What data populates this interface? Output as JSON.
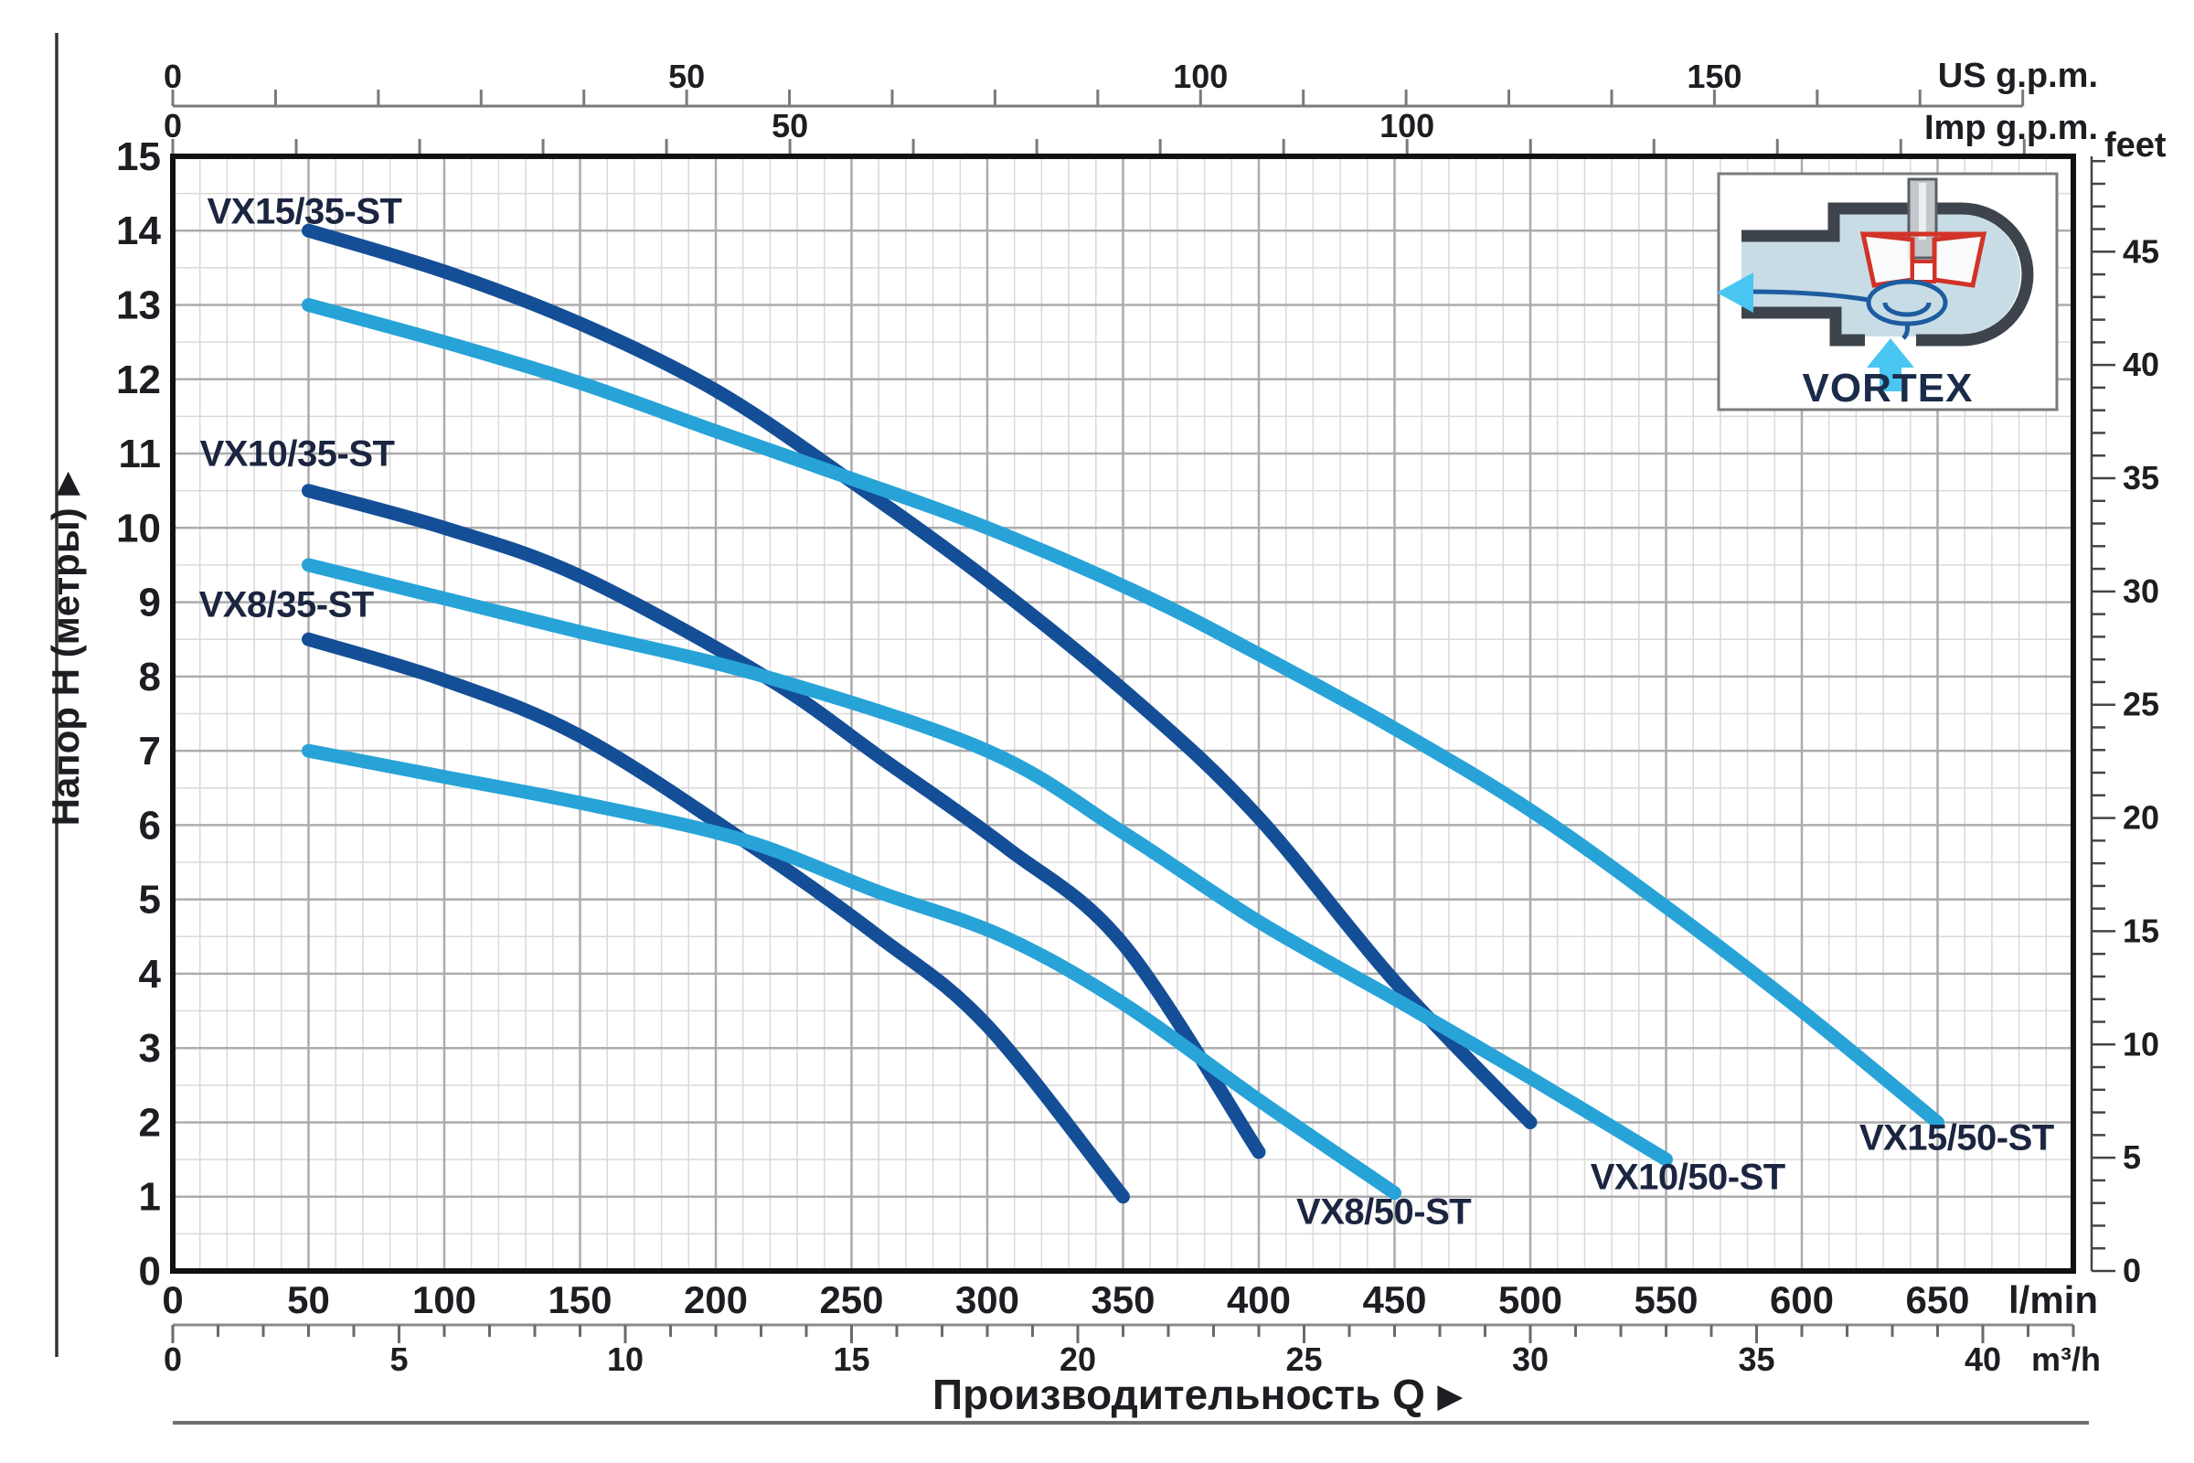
{
  "chart_data": {
    "type": "line",
    "x_axis_title": "Производительность Q",
    "y_axis_title": "Напор H (метры)",
    "x_axes": {
      "lmin": {
        "unit": "l/min",
        "labeled_ticks": [
          0,
          50,
          100,
          150,
          200,
          250,
          300,
          350,
          400,
          450,
          500,
          550,
          600,
          650
        ],
        "minor_step": 10,
        "range": [
          0,
          700
        ]
      },
      "m3h": {
        "unit": "m³/h",
        "labeled_ticks": [
          0,
          5,
          10,
          15,
          20,
          25,
          30,
          35,
          40
        ],
        "minor_step": 1,
        "range": [
          0,
          42
        ]
      },
      "us_gpm": {
        "unit": "US g.p.m.",
        "labeled_ticks": [
          0,
          50,
          100,
          150
        ],
        "minor_step": 10,
        "range": [
          0,
          180
        ]
      },
      "imp_gpm": {
        "unit": "Imp g.p.m.",
        "labeled_ticks": [
          0,
          50,
          100
        ],
        "minor_step": 10,
        "range": [
          0,
          150
        ]
      }
    },
    "y_axes": {
      "meters": {
        "unit": "m",
        "labeled_ticks": [
          0,
          1,
          2,
          3,
          4,
          5,
          6,
          7,
          8,
          9,
          10,
          11,
          12,
          13,
          14,
          15
        ],
        "minor_step": 0.5,
        "range": [
          0,
          15
        ]
      },
      "feet": {
        "unit": "feet",
        "labeled_ticks": [
          0,
          5,
          10,
          15,
          20,
          25,
          30,
          35,
          40,
          45
        ],
        "minor_step": 1,
        "range": [
          0,
          49
        ]
      }
    },
    "grid": "on",
    "series": [
      {
        "name": "VX15/35-ST",
        "color": "dark",
        "points": [
          [
            50,
            14.0
          ],
          [
            100,
            13.45
          ],
          [
            150,
            12.75
          ],
          [
            200,
            11.85
          ],
          [
            247,
            10.7
          ],
          [
            300,
            9.3
          ],
          [
            357,
            7.6
          ],
          [
            400,
            6.1
          ],
          [
            450,
            3.9
          ],
          [
            500,
            2.0
          ]
        ],
        "label_at": [
          48.5,
          14.25
        ]
      },
      {
        "name": "VX15/50-ST",
        "color": "light",
        "points": [
          [
            50,
            13.0
          ],
          [
            100,
            12.5
          ],
          [
            150,
            11.95
          ],
          [
            200,
            11.3
          ],
          [
            247,
            10.7
          ],
          [
            300,
            10.0
          ],
          [
            357,
            9.1
          ],
          [
            400,
            8.3
          ],
          [
            450,
            7.3
          ],
          [
            500,
            6.2
          ],
          [
            550,
            4.9
          ],
          [
            600,
            3.5
          ],
          [
            650,
            2.0
          ]
        ],
        "label_at": [
          657,
          1.78
        ]
      },
      {
        "name": "VX10/35-ST",
        "color": "dark",
        "points": [
          [
            50,
            10.5
          ],
          [
            100,
            10.0
          ],
          [
            150,
            9.35
          ],
          [
            218,
            8.0
          ],
          [
            261,
            6.9
          ],
          [
            307,
            5.7
          ],
          [
            350,
            4.4
          ],
          [
            400,
            1.6
          ]
        ],
        "label_at": [
          45.8,
          10.99
        ]
      },
      {
        "name": "VX10/50-ST",
        "color": "light",
        "points": [
          [
            50,
            9.5
          ],
          [
            100,
            9.05
          ],
          [
            150,
            8.6
          ],
          [
            218,
            8.0
          ],
          [
            300,
            7.0
          ],
          [
            350,
            5.9
          ],
          [
            400,
            4.7
          ],
          [
            453,
            3.6
          ],
          [
            500,
            2.6
          ],
          [
            550,
            1.5
          ]
        ],
        "label_at": [
          558,
          1.25
        ]
      },
      {
        "name": "VX8/35-ST",
        "color": "dark",
        "points": [
          [
            50,
            8.5
          ],
          [
            100,
            7.95
          ],
          [
            150,
            7.2
          ],
          [
            210,
            5.8
          ],
          [
            260,
            4.5
          ],
          [
            300,
            3.3
          ],
          [
            350,
            1.0
          ]
        ],
        "label_at": [
          41.8,
          8.96
        ]
      },
      {
        "name": "VX8/50-ST",
        "color": "light",
        "points": [
          [
            50,
            7.0
          ],
          [
            100,
            6.65
          ],
          [
            150,
            6.3
          ],
          [
            210,
            5.8
          ],
          [
            260,
            5.1
          ],
          [
            306,
            4.5
          ],
          [
            350,
            3.6
          ],
          [
            400,
            2.3
          ],
          [
            450,
            1.05
          ]
        ],
        "label_at": [
          446,
          0.79
        ]
      }
    ]
  },
  "titles": {
    "x_axis": "Производительность Q",
    "y_axis": "Напор H (метры)",
    "arrow": "▶"
  },
  "units": {
    "us_gpm": "US g.p.m.",
    "imp_gpm": "Imp g.p.m.",
    "feet": "feet",
    "lmin": "l/min",
    "m3h": "m³/h"
  },
  "inset": {
    "label": "VORTEX"
  },
  "colors": {
    "curve_dark": "#144e97",
    "curve_light": "#27a3d8",
    "curve_label_text": "#1b2540",
    "axis_text": "#1d1d22",
    "grid_minor": "#d9d9d9",
    "grid_major": "#acacac",
    "plot_border": "#111111",
    "ruler": "#7a7a7a",
    "inset_casing": "#3e444b",
    "inset_fluid": "#c8dce6",
    "inset_impeller": "#d23328",
    "inset_flow": "#1d5c9f",
    "inset_arrow": "#49c6f1"
  }
}
